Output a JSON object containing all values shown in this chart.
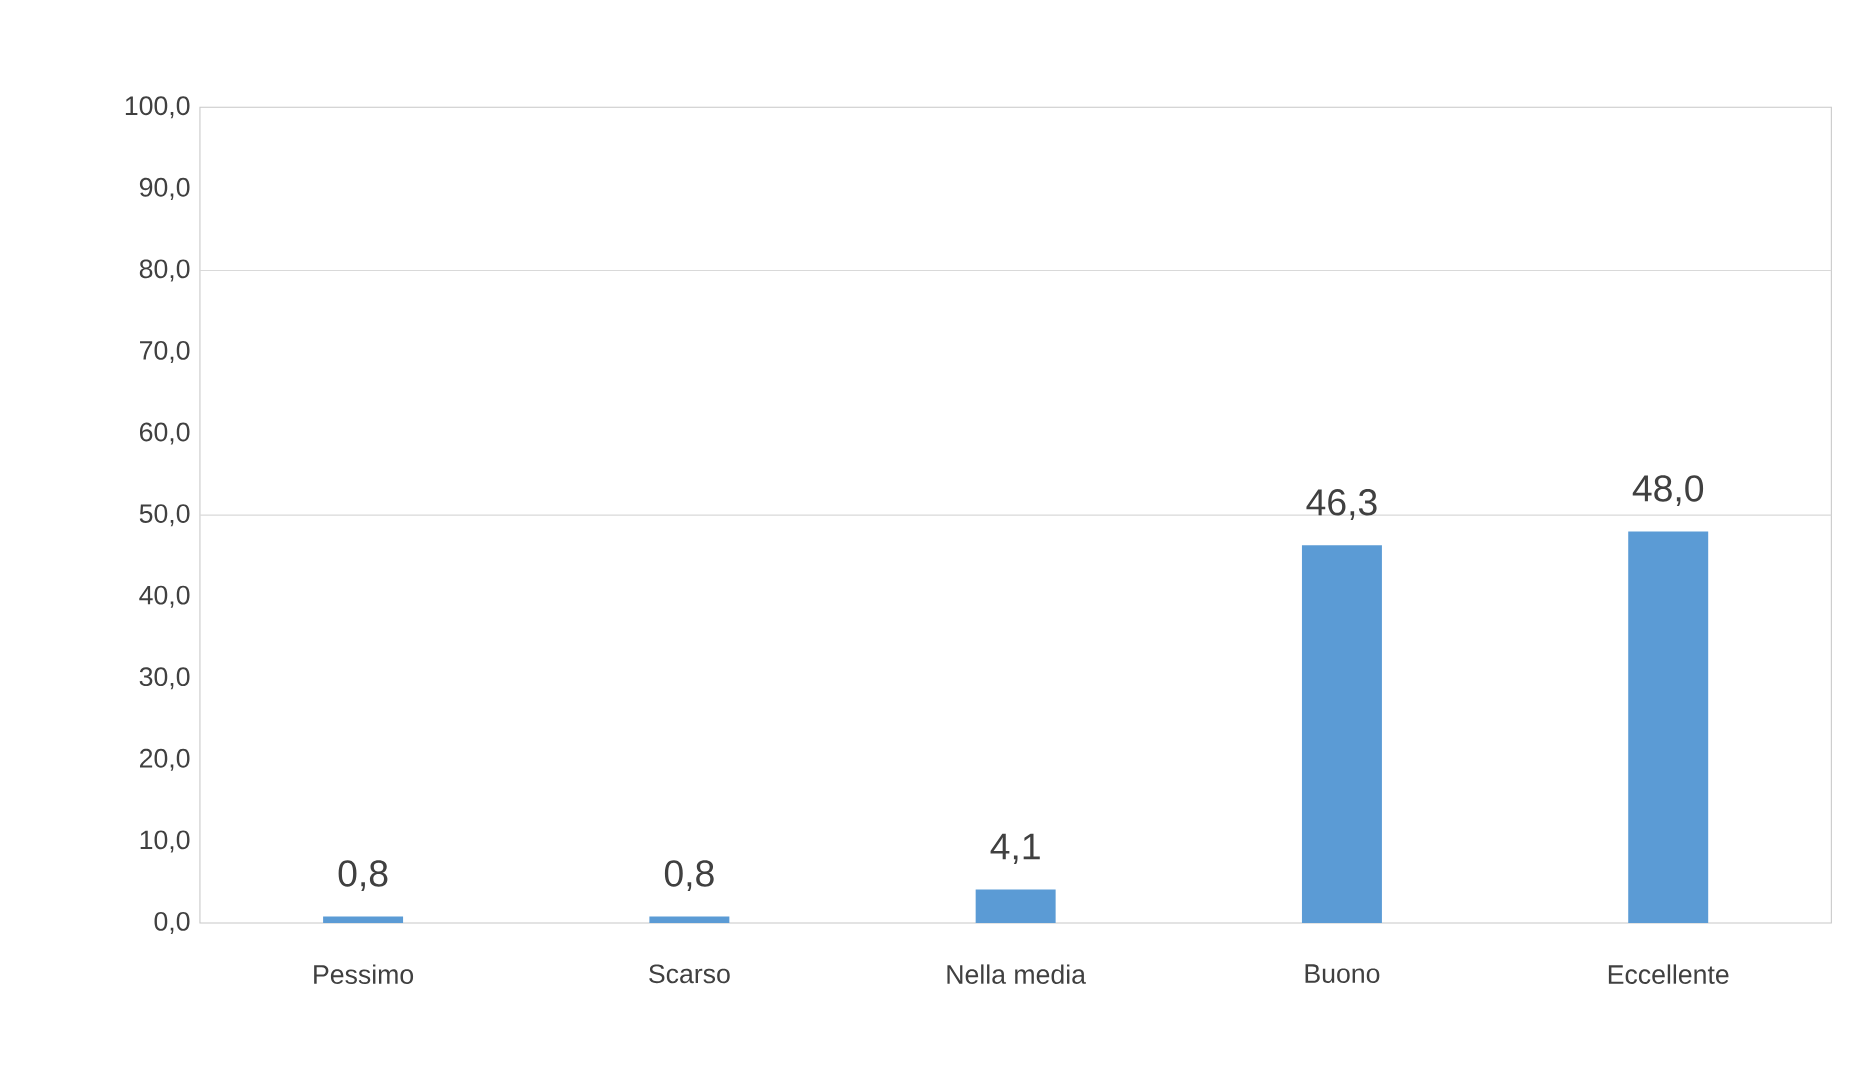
{
  "chart_data": {
    "type": "bar",
    "categories": [
      "Pessimo",
      "Scarso",
      "Nella media",
      "Buono",
      "Eccellente"
    ],
    "values": [
      0.8,
      0.8,
      4.1,
      46.3,
      48.0
    ],
    "value_labels": [
      "0,8",
      "0,8",
      "4,1",
      "46,3",
      "48,0"
    ],
    "color": "#5b9bd5",
    "ylim": [
      0,
      100
    ],
    "yticks": [
      {
        "value": 0,
        "label": "0,0"
      },
      {
        "value": 10,
        "label": "10,0"
      },
      {
        "value": 20,
        "label": "20,0"
      },
      {
        "value": 30,
        "label": "30,0"
      },
      {
        "value": 40,
        "label": "40,0"
      },
      {
        "value": 50,
        "label": "50,0"
      },
      {
        "value": 60,
        "label": "60,0"
      },
      {
        "value": 70,
        "label": "70,0"
      },
      {
        "value": 80,
        "label": "80,0"
      },
      {
        "value": 90,
        "label": "90,0"
      },
      {
        "value": 100,
        "label": "100,0"
      }
    ],
    "ref_lines": [
      {
        "axis": "y",
        "value": 80,
        "color": "#d9d9d9"
      },
      {
        "axis": "y",
        "value": 50,
        "color": "#d9d9d9"
      }
    ]
  }
}
